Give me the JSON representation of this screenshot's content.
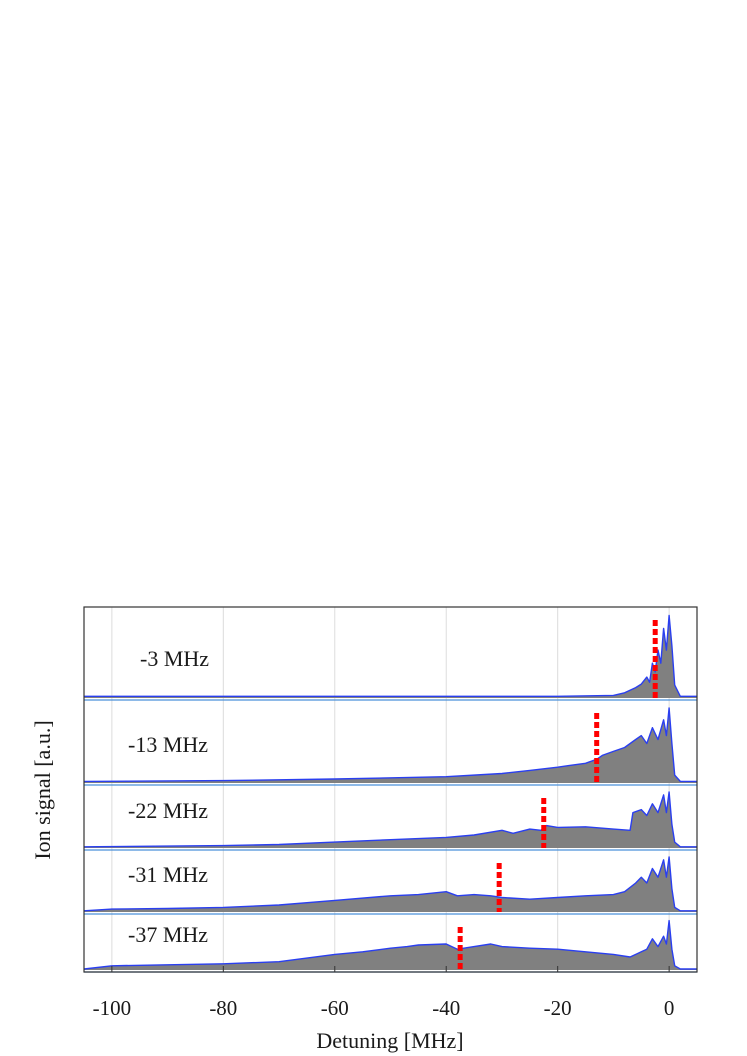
{
  "chart_data": {
    "type": "area",
    "xlabel": "Detuning [MHz]",
    "ylabel": "Ion signal [a.u.]",
    "xlim": [
      -105,
      5
    ],
    "ylim": [
      0,
      1
    ],
    "x_ticks": [
      -100,
      -80,
      -60,
      -40,
      -20,
      0
    ],
    "x_tick_labels": [
      "-100",
      "-80",
      "-60",
      "-40",
      "-20",
      "0"
    ],
    "grid": "vertical",
    "colors": {
      "fill": "#808080",
      "outline": "#2a3ff0",
      "marker": "#ff0000",
      "grid": "#dcdcdc",
      "baseline": "#4a90d9"
    },
    "panels": [
      {
        "label": "-3 MHz",
        "marker_x": -2.5,
        "points": [
          [
            -105,
            0.02
          ],
          [
            -60,
            0.02
          ],
          [
            -20,
            0.02
          ],
          [
            -10,
            0.03
          ],
          [
            -8,
            0.06
          ],
          [
            -6,
            0.12
          ],
          [
            -5,
            0.16
          ],
          [
            -4,
            0.24
          ],
          [
            -3.5,
            0.18
          ],
          [
            -3,
            0.4
          ],
          [
            -2.5,
            0.3
          ],
          [
            -2,
            0.55
          ],
          [
            -1.5,
            0.4
          ],
          [
            -1,
            0.8
          ],
          [
            -0.5,
            0.55
          ],
          [
            0,
            0.95
          ],
          [
            0.5,
            0.6
          ],
          [
            1,
            0.15
          ],
          [
            2,
            0.02
          ],
          [
            5,
            0.02
          ]
        ]
      },
      {
        "label": "-13 MHz",
        "marker_x": -13,
        "points": [
          [
            -105,
            0.02
          ],
          [
            -80,
            0.03
          ],
          [
            -60,
            0.05
          ],
          [
            -40,
            0.08
          ],
          [
            -30,
            0.12
          ],
          [
            -25,
            0.16
          ],
          [
            -20,
            0.2
          ],
          [
            -18,
            0.22
          ],
          [
            -15,
            0.25
          ],
          [
            -13,
            0.3
          ],
          [
            -12,
            0.35
          ],
          [
            -10,
            0.4
          ],
          [
            -8,
            0.45
          ],
          [
            -6,
            0.55
          ],
          [
            -5,
            0.6
          ],
          [
            -4,
            0.5
          ],
          [
            -3,
            0.7
          ],
          [
            -2,
            0.55
          ],
          [
            -1,
            0.8
          ],
          [
            -0.5,
            0.6
          ],
          [
            0,
            0.95
          ],
          [
            0.5,
            0.5
          ],
          [
            1,
            0.1
          ],
          [
            2,
            0.02
          ],
          [
            5,
            0.02
          ]
        ]
      },
      {
        "label": "-22 MHz",
        "marker_x": -22.5,
        "points": [
          [
            -105,
            0.02
          ],
          [
            -80,
            0.04
          ],
          [
            -70,
            0.06
          ],
          [
            -60,
            0.1
          ],
          [
            -50,
            0.14
          ],
          [
            -40,
            0.18
          ],
          [
            -35,
            0.22
          ],
          [
            -30,
            0.3
          ],
          [
            -28,
            0.25
          ],
          [
            -25,
            0.32
          ],
          [
            -23,
            0.3
          ],
          [
            -22,
            0.38
          ],
          [
            -20,
            0.35
          ],
          [
            -15,
            0.36
          ],
          [
            -10,
            0.32
          ],
          [
            -7,
            0.3
          ],
          [
            -6.5,
            0.6
          ],
          [
            -5,
            0.65
          ],
          [
            -4,
            0.55
          ],
          [
            -3,
            0.75
          ],
          [
            -2,
            0.6
          ],
          [
            -1,
            0.9
          ],
          [
            -0.5,
            0.6
          ],
          [
            0,
            0.95
          ],
          [
            0.5,
            0.4
          ],
          [
            1,
            0.1
          ],
          [
            2,
            0.02
          ],
          [
            5,
            0.02
          ]
        ]
      },
      {
        "label": "-31 MHz",
        "marker_x": -30.5,
        "points": [
          [
            -105,
            0.02
          ],
          [
            -100,
            0.05
          ],
          [
            -90,
            0.06
          ],
          [
            -80,
            0.08
          ],
          [
            -70,
            0.12
          ],
          [
            -60,
            0.2
          ],
          [
            -50,
            0.28
          ],
          [
            -45,
            0.3
          ],
          [
            -40,
            0.35
          ],
          [
            -38,
            0.28
          ],
          [
            -35,
            0.3
          ],
          [
            -32,
            0.28
          ],
          [
            -30,
            0.25
          ],
          [
            -25,
            0.22
          ],
          [
            -20,
            0.25
          ],
          [
            -15,
            0.28
          ],
          [
            -10,
            0.3
          ],
          [
            -8,
            0.35
          ],
          [
            -6,
            0.5
          ],
          [
            -5,
            0.6
          ],
          [
            -4,
            0.5
          ],
          [
            -3,
            0.75
          ],
          [
            -2,
            0.6
          ],
          [
            -1,
            0.9
          ],
          [
            -0.5,
            0.6
          ],
          [
            0,
            0.95
          ],
          [
            0.5,
            0.4
          ],
          [
            1,
            0.08
          ],
          [
            2,
            0.02
          ],
          [
            5,
            0.02
          ]
        ]
      },
      {
        "label": "-37 MHz",
        "marker_x": -37.5,
        "points": [
          [
            -105,
            0.02
          ],
          [
            -100,
            0.08
          ],
          [
            -90,
            0.1
          ],
          [
            -80,
            0.12
          ],
          [
            -70,
            0.16
          ],
          [
            -60,
            0.3
          ],
          [
            -55,
            0.35
          ],
          [
            -50,
            0.42
          ],
          [
            -47,
            0.45
          ],
          [
            -45,
            0.48
          ],
          [
            -40,
            0.5
          ],
          [
            -38,
            0.4
          ],
          [
            -35,
            0.45
          ],
          [
            -32,
            0.5
          ],
          [
            -30,
            0.45
          ],
          [
            -25,
            0.42
          ],
          [
            -20,
            0.4
          ],
          [
            -15,
            0.35
          ],
          [
            -10,
            0.3
          ],
          [
            -7,
            0.25
          ],
          [
            -5,
            0.35
          ],
          [
            -4,
            0.4
          ],
          [
            -3,
            0.6
          ],
          [
            -2,
            0.45
          ],
          [
            -1,
            0.65
          ],
          [
            -0.5,
            0.5
          ],
          [
            0,
            0.95
          ],
          [
            0.5,
            0.4
          ],
          [
            1,
            0.08
          ],
          [
            2,
            0.02
          ],
          [
            5,
            0.02
          ]
        ]
      }
    ]
  }
}
